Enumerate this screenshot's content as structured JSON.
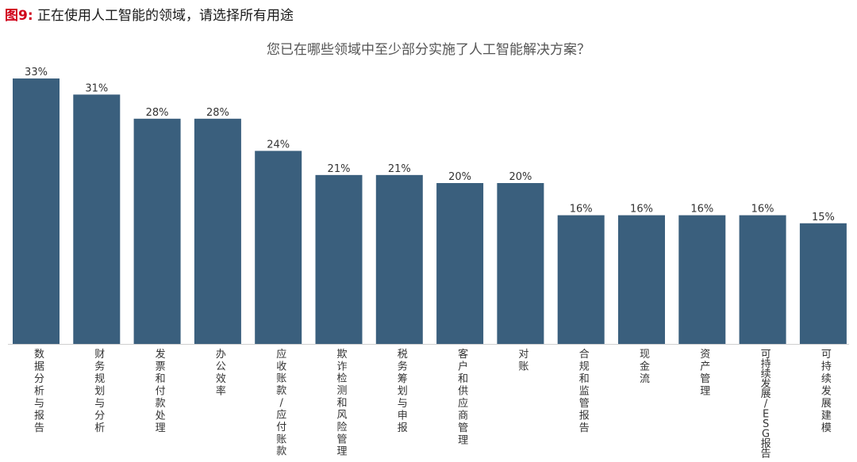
{
  "figure": {
    "label": "图9:",
    "caption": "正在使用人工智能的领域，请选择所有用途"
  },
  "colors": {
    "bar": "#3a5f7d",
    "label_accent": "#d0021b",
    "text": "#333333"
  },
  "chart_data": {
    "type": "bar",
    "title": "您已在哪些领域中至少部分实施了人工智能解决方案？",
    "xlabel": "",
    "ylabel": "",
    "ylim": [
      0,
      35
    ],
    "grid": false,
    "legend": "none",
    "categories": [
      "数据分析与报告",
      "财务规划与分析",
      "发票和付款处理",
      "办公效率",
      "应收账款/应付账款",
      "欺诈检测和风险管理",
      "税务筹划与申报",
      "客户和供应商管理",
      "对账",
      "合规和监管报告",
      "现金流",
      "资产管理",
      "可持续发展/ESG报告",
      "可持续发展建模"
    ],
    "values": [
      33,
      31,
      28,
      28,
      24,
      21,
      21,
      20,
      20,
      16,
      16,
      16,
      16,
      15
    ],
    "data_labels": [
      "33%",
      "31%",
      "28%",
      "28%",
      "24%",
      "21%",
      "21%",
      "20%",
      "20%",
      "16%",
      "16%",
      "16%",
      "16%",
      "15%"
    ]
  }
}
